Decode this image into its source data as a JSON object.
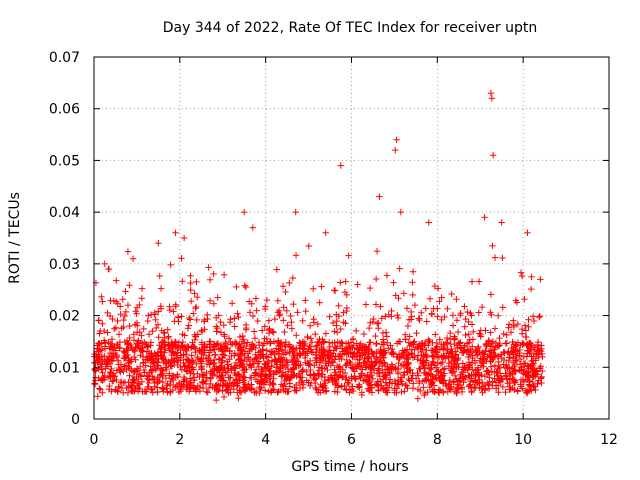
{
  "chart_data": {
    "type": "scatter",
    "title": "Day 344 of 2022, Rate Of TEC Index for receiver uptn",
    "xlabel": "GPS time / hours",
    "ylabel": "ROTI / TECUs",
    "xlim": [
      0,
      12
    ],
    "ylim": [
      0,
      0.07
    ],
    "xticks": [
      0,
      2,
      4,
      6,
      8,
      10,
      12
    ],
    "yticks": [
      0,
      0.01,
      0.02,
      0.03,
      0.04,
      0.05,
      0.06,
      0.07
    ],
    "xtick_labels": [
      "0",
      "2",
      "4",
      "6",
      "8",
      "10",
      "12"
    ],
    "ytick_labels": [
      "0",
      "0.01",
      "0.02",
      "0.03",
      "0.04",
      "0.05",
      "0.06",
      "0.07"
    ],
    "grid": true,
    "marker": "+",
    "color": "#ff0000",
    "series": [
      {
        "name": "ROTI",
        "x_range": [
          0.0,
          10.45
        ],
        "typical_band": [
          0.005,
          0.015
        ],
        "notable_points": [
          {
            "x": 0.25,
            "y": 0.03
          },
          {
            "x": 0.35,
            "y": 0.029
          },
          {
            "x": 1.5,
            "y": 0.034
          },
          {
            "x": 1.9,
            "y": 0.036
          },
          {
            "x": 2.1,
            "y": 0.035
          },
          {
            "x": 3.5,
            "y": 0.04
          },
          {
            "x": 3.7,
            "y": 0.037
          },
          {
            "x": 4.7,
            "y": 0.04
          },
          {
            "x": 5.4,
            "y": 0.036
          },
          {
            "x": 5.75,
            "y": 0.049
          },
          {
            "x": 6.65,
            "y": 0.043
          },
          {
            "x": 7.05,
            "y": 0.054
          },
          {
            "x": 7.02,
            "y": 0.052
          },
          {
            "x": 7.15,
            "y": 0.04
          },
          {
            "x": 7.8,
            "y": 0.038
          },
          {
            "x": 9.1,
            "y": 0.039
          },
          {
            "x": 9.25,
            "y": 0.063
          },
          {
            "x": 9.27,
            "y": 0.062
          },
          {
            "x": 9.3,
            "y": 0.051
          },
          {
            "x": 9.5,
            "y": 0.038
          },
          {
            "x": 10.1,
            "y": 0.036
          },
          {
            "x": 10.4,
            "y": 0.027
          }
        ]
      }
    ]
  }
}
